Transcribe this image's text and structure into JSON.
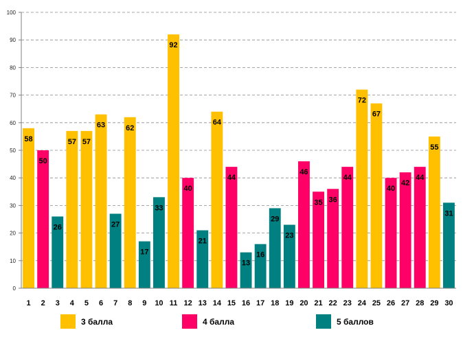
{
  "chart_data": {
    "type": "bar",
    "title": "",
    "xlabel": "",
    "ylabel": "",
    "ylim": [
      0,
      100
    ],
    "yticks": [
      0,
      10,
      20,
      30,
      40,
      50,
      60,
      70,
      80,
      90,
      100
    ],
    "grid": true,
    "categories": [
      "1",
      "2",
      "3",
      "4",
      "5",
      "6",
      "7",
      "8",
      "9",
      "10",
      "11",
      "12",
      "13",
      "14",
      "15",
      "16",
      "17",
      "18",
      "19",
      "20",
      "21",
      "22",
      "23",
      "24",
      "25",
      "26",
      "27",
      "28",
      "29",
      "30"
    ],
    "values": [
      58,
      50,
      26,
      57,
      57,
      63,
      27,
      62,
      17,
      33,
      92,
      40,
      21,
      64,
      44,
      13,
      16,
      29,
      23,
      46,
      35,
      36,
      44,
      72,
      67,
      40,
      42,
      44,
      55,
      31
    ],
    "groups": [
      "3 балла",
      "4 балла",
      "5 баллов",
      "3 балла",
      "3 балла",
      "3 балла",
      "5 баллов",
      "3 балла",
      "5 баллов",
      "5 баллов",
      "3 балла",
      "4 балла",
      "5 баллов",
      "3 балла",
      "4 балла",
      "5 баллов",
      "5 баллов",
      "5 баллов",
      "5 баллов",
      "4 балла",
      "4 балла",
      "4 балла",
      "4 балла",
      "3 балла",
      "3 балла",
      "4 балла",
      "4 балла",
      "4 балла",
      "3 балла",
      "5 баллов"
    ],
    "legend": [
      {
        "name": "3 балла",
        "color": "#FFC000"
      },
      {
        "name": "4 балла",
        "color": "#FF0066"
      },
      {
        "name": "5 баллов",
        "color": "#008080"
      }
    ],
    "legend_position": "bottom"
  }
}
